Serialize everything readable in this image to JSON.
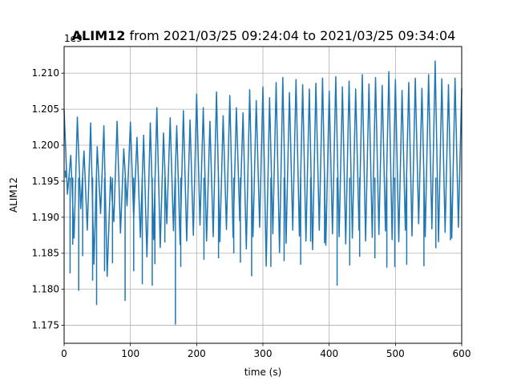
{
  "chart_data": {
    "type": "line",
    "title_bold": "ALIM12",
    "title_rest": " from 2021/03/25 09:24:04 to 2021/03/25 09:34:04",
    "xlabel": "time (s)",
    "ylabel": "ALIM12",
    "offset_text": "1e9",
    "xlim": [
      0,
      600
    ],
    "ylim": [
      1.1725,
      1.2137
    ],
    "xticks": [
      0,
      100,
      200,
      300,
      400,
      500,
      600
    ],
    "yticks": [
      1.175,
      1.18,
      1.185,
      1.19,
      1.195,
      1.2,
      1.205,
      1.21
    ],
    "xtick_labels": [
      "0",
      "100",
      "200",
      "300",
      "400",
      "500",
      "600"
    ],
    "ytick_labels": [
      "1.175",
      "1.180",
      "1.185",
      "1.190",
      "1.195",
      "1.200",
      "1.205",
      "1.210"
    ],
    "grid": true,
    "line_color": "#1f77b4",
    "series": [
      {
        "x": [
          0,
          5,
          10,
          15,
          20,
          25,
          30,
          35,
          40,
          45,
          50,
          55,
          60,
          65,
          70,
          75,
          80,
          85,
          90,
          95,
          100,
          105,
          110,
          115,
          120,
          125,
          130,
          135,
          140,
          145,
          150,
          155,
          160,
          165,
          170,
          175,
          180,
          185,
          190,
          195,
          200,
          205,
          210,
          215,
          220,
          225,
          230,
          235,
          240,
          245,
          250,
          255,
          260,
          265,
          270,
          275,
          280,
          285,
          290,
          295,
          300,
          305,
          310,
          315,
          320,
          325,
          330,
          335,
          340,
          345,
          350,
          355,
          360,
          365,
          370,
          375,
          380,
          385,
          390,
          395,
          400,
          405,
          410,
          415,
          420,
          425,
          430,
          435,
          440,
          445,
          450,
          455,
          460,
          465,
          470,
          475,
          480,
          485,
          490,
          495,
          500,
          505,
          510,
          515,
          520,
          525,
          530,
          535,
          540,
          545,
          550,
          555,
          560,
          565,
          570,
          575,
          580,
          585,
          590,
          595,
          600
        ],
        "values": [
          1.2049,
          1.1932,
          1.1986,
          1.1871,
          1.2039,
          1.1912,
          1.1992,
          1.1882,
          1.2031,
          1.1835,
          1.1998,
          1.1905,
          1.2027,
          1.1818,
          1.1956,
          1.1894,
          1.2033,
          1.1878,
          1.1995,
          1.1916,
          1.2032,
          1.1899,
          1.2011,
          1.1872,
          1.2014,
          1.1845,
          1.2031,
          1.1869,
          1.2052,
          1.1858,
          1.2017,
          1.1891,
          1.2038,
          1.1881,
          1.2027,
          1.1862,
          1.2048,
          1.1867,
          1.2035,
          1.1875,
          1.2071,
          1.1889,
          1.2052,
          1.1867,
          1.2033,
          1.1873,
          1.2074,
          1.1866,
          1.2041,
          1.1883,
          1.2069,
          1.1872,
          1.2052,
          1.1895,
          1.2045,
          1.1856,
          1.2077,
          1.1873,
          1.2062,
          1.1886,
          1.2081,
          1.1832,
          1.2066,
          1.1877,
          1.2087,
          1.1851,
          1.2094,
          1.1864,
          1.2073,
          1.1882,
          1.2091,
          1.1874,
          1.2084,
          1.1867,
          1.2078,
          1.1855,
          1.2086,
          1.1882,
          1.2093,
          1.1861,
          1.2075,
          1.1877,
          1.2095,
          1.1873,
          1.2081,
          1.1863,
          1.2089,
          1.1871,
          1.2078,
          1.1882,
          1.2098,
          1.1867,
          1.2085,
          1.1872,
          1.2094,
          1.1876,
          1.2083,
          1.1881,
          1.2102,
          1.1869,
          1.2091,
          1.1866,
          1.2076,
          1.1882,
          1.2087,
          1.1874,
          1.2093,
          1.1891,
          1.2079,
          1.1873,
          1.2098,
          1.1884,
          1.2117,
          1.1866,
          1.2092,
          1.1879,
          1.2084,
          1.1871,
          1.2093,
          1.1886,
          1.2079
        ]
      }
    ],
    "dips": [
      {
        "x": 2,
        "y": 1.1965
      },
      {
        "x": 9,
        "y": 1.1822
      },
      {
        "x": 13,
        "y": 1.1862
      },
      {
        "x": 22,
        "y": 1.1798
      },
      {
        "x": 28,
        "y": 1.1846
      },
      {
        "x": 43,
        "y": 1.1812
      },
      {
        "x": 49,
        "y": 1.1778
      },
      {
        "x": 61,
        "y": 1.1825
      },
      {
        "x": 73,
        "y": 1.1836
      },
      {
        "x": 92,
        "y": 1.1784
      },
      {
        "x": 105,
        "y": 1.1825
      },
      {
        "x": 118,
        "y": 1.1807
      },
      {
        "x": 133,
        "y": 1.1805
      },
      {
        "x": 137,
        "y": 1.1835
      },
      {
        "x": 152,
        "y": 1.1865
      },
      {
        "x": 168,
        "y": 1.1751
      },
      {
        "x": 176,
        "y": 1.1831
      },
      {
        "x": 211,
        "y": 1.1841
      },
      {
        "x": 233,
        "y": 1.1843
      },
      {
        "x": 256,
        "y": 1.185
      },
      {
        "x": 266,
        "y": 1.1837
      },
      {
        "x": 283,
        "y": 1.1818
      },
      {
        "x": 312,
        "y": 1.1831
      },
      {
        "x": 332,
        "y": 1.1839
      },
      {
        "x": 357,
        "y": 1.1834
      },
      {
        "x": 372,
        "y": 1.1866
      },
      {
        "x": 393,
        "y": 1.1864
      },
      {
        "x": 412,
        "y": 1.1805
      },
      {
        "x": 431,
        "y": 1.1833
      },
      {
        "x": 446,
        "y": 1.1845
      },
      {
        "x": 469,
        "y": 1.1843
      },
      {
        "x": 487,
        "y": 1.183
      },
      {
        "x": 499,
        "y": 1.1831
      },
      {
        "x": 517,
        "y": 1.1834
      },
      {
        "x": 543,
        "y": 1.1832
      },
      {
        "x": 561,
        "y": 1.1857
      },
      {
        "x": 583,
        "y": 1.1868
      }
    ]
  }
}
